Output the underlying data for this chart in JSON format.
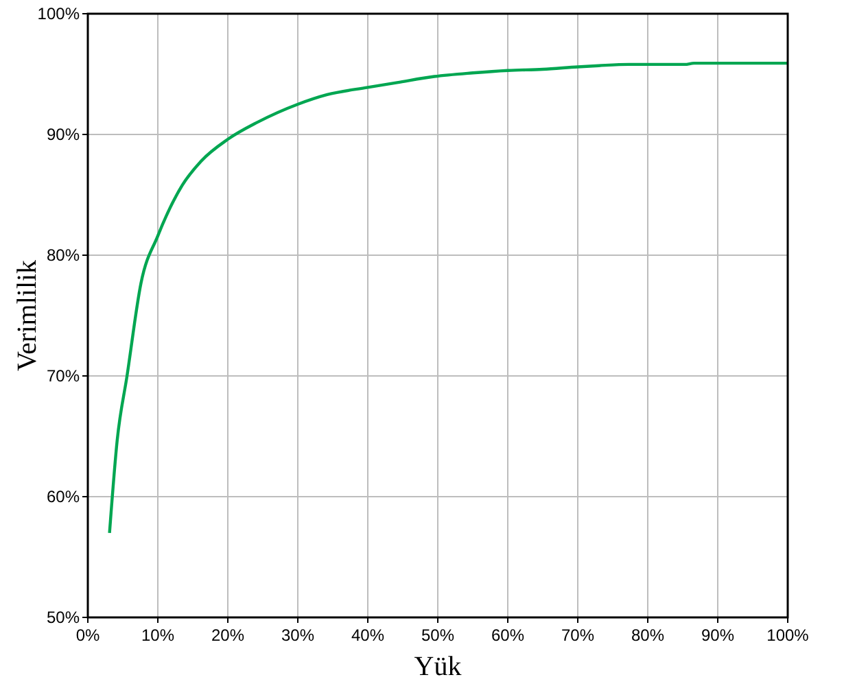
{
  "chart_data": {
    "type": "line",
    "xlabel": "Yük",
    "ylabel": "Verimlilik",
    "x": [
      3.1,
      4.2,
      5.6,
      7.6,
      10,
      13.5,
      16.2,
      20,
      24.2,
      30,
      34.2,
      40,
      44.2,
      49.5,
      55,
      60,
      65,
      70,
      73,
      77.3,
      85.3,
      86.6,
      100
    ],
    "series": [
      {
        "color": "#00a651",
        "values": [
          57,
          64.7,
          70,
          77.7,
          81.6,
          85.8,
          87.8,
          89.6,
          91,
          92.5,
          93.3,
          93.9,
          94.3,
          94.8,
          95.1,
          95.3,
          95.4,
          95.6,
          95.7,
          95.8,
          95.8,
          95.9,
          95.9
        ]
      }
    ],
    "xlim": [
      0,
      100
    ],
    "ylim": [
      50,
      100
    ],
    "xticks": [
      {
        "value": 0,
        "label": "0%"
      },
      {
        "value": 10,
        "label": "10%"
      },
      {
        "value": 20,
        "label": "20%"
      },
      {
        "value": 30,
        "label": "30%"
      },
      {
        "value": 40,
        "label": "40%"
      },
      {
        "value": 50,
        "label": "50%"
      },
      {
        "value": 60,
        "label": "60%"
      },
      {
        "value": 70,
        "label": "70%"
      },
      {
        "value": 80,
        "label": "80%"
      },
      {
        "value": 90,
        "label": "90%"
      },
      {
        "value": 100,
        "label": "100%"
      }
    ],
    "yticks": [
      {
        "value": 50,
        "label": "50%"
      },
      {
        "value": 60,
        "label": "60%"
      },
      {
        "value": 70,
        "label": "70%"
      },
      {
        "value": 80,
        "label": "80%"
      },
      {
        "value": 90,
        "label": "90%"
      },
      {
        "value": 100,
        "label": "100%"
      }
    ],
    "grid": true,
    "line_style": "solid",
    "marker": "none"
  }
}
